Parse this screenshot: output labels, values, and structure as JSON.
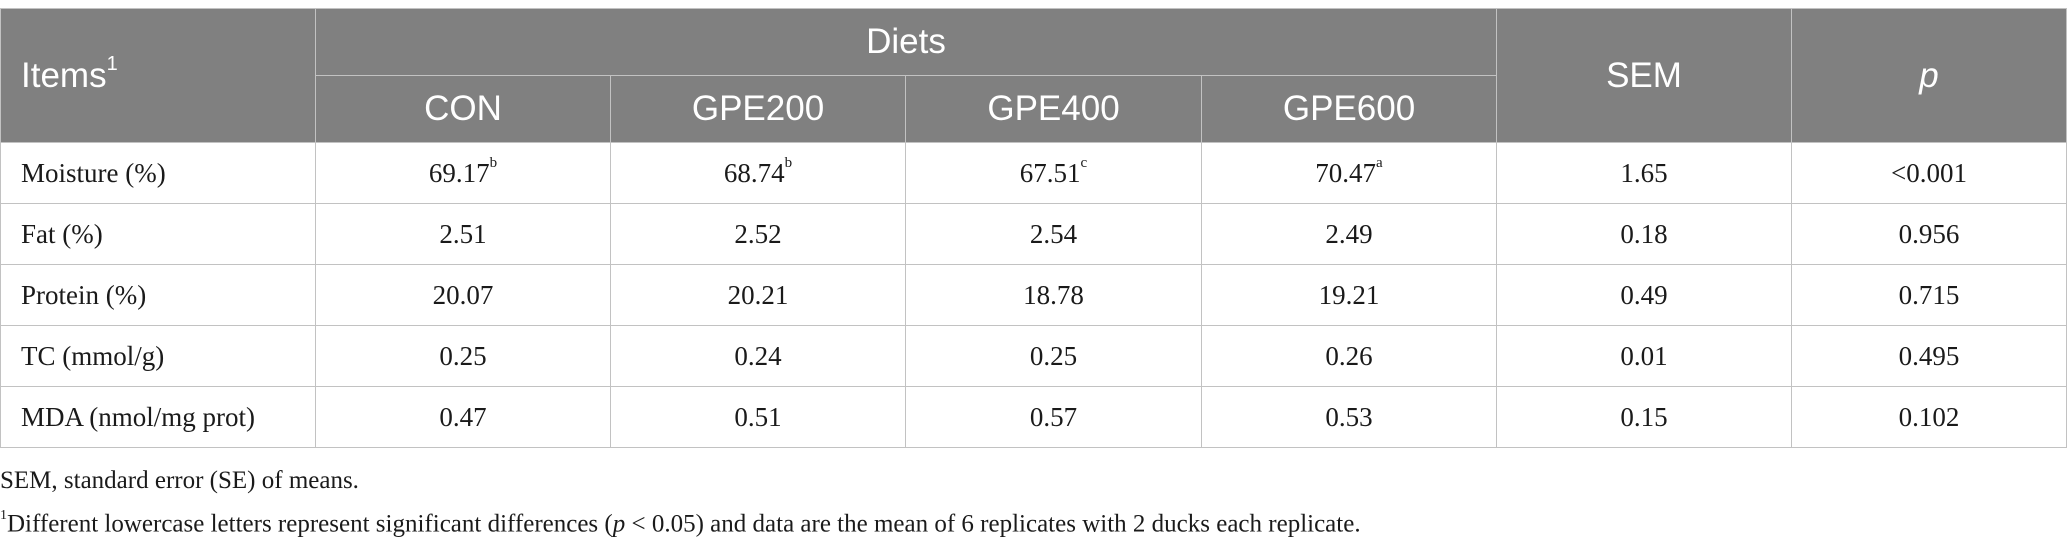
{
  "table": {
    "header": {
      "items_label": "Items",
      "items_footnote_mark": "1",
      "group_label": "Diets",
      "diet_columns": [
        "CON",
        "GPE200",
        "GPE400",
        "GPE600"
      ],
      "sem_label": "SEM",
      "p_label": "p"
    },
    "rows": [
      {
        "label": "Moisture (%)",
        "values": [
          "69.17",
          "68.74",
          "67.51",
          "70.47"
        ],
        "superscripts": [
          "b",
          "b",
          "c",
          "a"
        ],
        "sem": "1.65",
        "p": "<0.001"
      },
      {
        "label": "Fat (%)",
        "values": [
          "2.51",
          "2.52",
          "2.54",
          "2.49"
        ],
        "superscripts": [
          "",
          "",
          "",
          ""
        ],
        "sem": "0.18",
        "p": "0.956"
      },
      {
        "label": "Protein (%)",
        "values": [
          "20.07",
          "20.21",
          "18.78",
          "19.21"
        ],
        "superscripts": [
          "",
          "",
          "",
          ""
        ],
        "sem": "0.49",
        "p": "0.715"
      },
      {
        "label": "TC (mmol/g)",
        "values": [
          "0.25",
          "0.24",
          "0.25",
          "0.26"
        ],
        "superscripts": [
          "",
          "",
          "",
          ""
        ],
        "sem": "0.01",
        "p": "0.495"
      },
      {
        "label": "MDA (nmol/mg prot)",
        "values": [
          "0.47",
          "0.51",
          "0.57",
          "0.53"
        ],
        "superscripts": [
          "",
          "",
          "",
          ""
        ],
        "sem": "0.15",
        "p": "0.102"
      }
    ]
  },
  "footnotes": {
    "sem_note": "SEM, standard error (SE) of means.",
    "note1_mark": "1",
    "note1_before": "Different lowercase letters represent significant differences (",
    "note1_italic": "p",
    "note1_after": " < 0.05) and data are the mean of 6 replicates with 2 ducks each replicate."
  }
}
